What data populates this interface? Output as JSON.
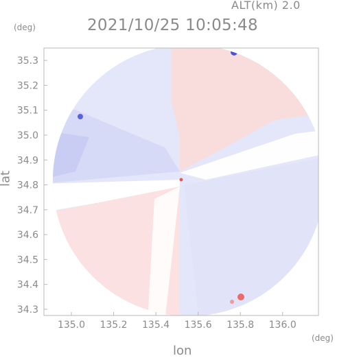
{
  "header": {
    "altitude_label": "ALT(km) 2.0",
    "timestamp": "2021/10/25 10:05:48"
  },
  "axes": {
    "y_unit": "(deg)",
    "x_unit": "(deg)",
    "xlabel": "lon",
    "ylabel": "lat"
  },
  "chart_data": {
    "type": "heatmap",
    "title": "",
    "xlabel": "lon",
    "ylabel": "lat",
    "x_ticks": [
      "135.0",
      "135.2",
      "135.4",
      "135.6",
      "135.8",
      "136.0"
    ],
    "y_ticks": [
      "35.3",
      "35.2",
      "35.1",
      "35.0",
      "34.9",
      "34.8",
      "34.7",
      "34.6",
      "34.5",
      "34.4",
      "34.3"
    ],
    "xlim": [
      134.87,
      136.17
    ],
    "ylim": [
      34.275,
      35.35
    ],
    "radar_center": {
      "lon": 135.52,
      "lat": 34.82
    },
    "colors": {
      "positive": "#f7d6d6",
      "negative": "#d8dcf8",
      "strong_positive": "#ee6a6a",
      "strong_negative": "#4a52d8"
    }
  }
}
